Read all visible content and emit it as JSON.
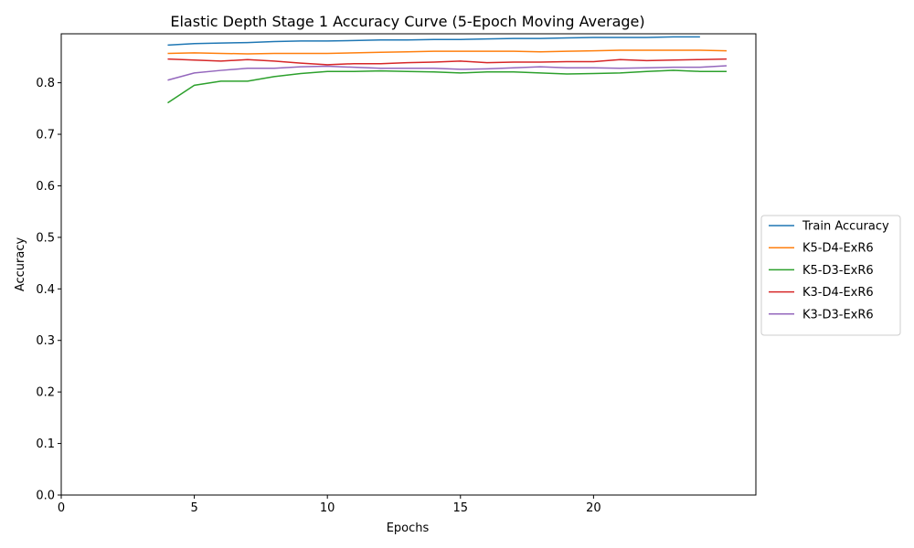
{
  "chart_data": {
    "type": "line",
    "title": "Elastic Depth Stage 1 Accuracy Curve (5-Epoch Moving Average)",
    "xlabel": "Epochs",
    "ylabel": "Accuracy",
    "xlim": [
      0,
      26.1
    ],
    "ylim": [
      0,
      0.895
    ],
    "xticks": [
      0,
      5,
      10,
      15,
      20
    ],
    "yticks": [
      0.0,
      0.1,
      0.2,
      0.3,
      0.4,
      0.5,
      0.6,
      0.7,
      0.8
    ],
    "grid": false,
    "legend_position": "right-outside",
    "series": [
      {
        "name": "Train Accuracy",
        "color": "#1f77b4",
        "x": [
          4,
          5,
          6,
          7,
          8,
          9,
          10,
          11,
          12,
          13,
          14,
          15,
          16,
          17,
          18,
          19,
          20,
          21,
          22,
          23,
          24
        ],
        "y": [
          0.873,
          0.876,
          0.877,
          0.878,
          0.88,
          0.881,
          0.881,
          0.882,
          0.883,
          0.883,
          0.884,
          0.884,
          0.885,
          0.886,
          0.886,
          0.887,
          0.888,
          0.888,
          0.888,
          0.889,
          0.889
        ]
      },
      {
        "name": "K5-D4-ExR6",
        "color": "#ff7f0e",
        "x": [
          4,
          5,
          6,
          7,
          8,
          9,
          10,
          11,
          12,
          13,
          14,
          15,
          16,
          17,
          18,
          19,
          20,
          21,
          22,
          23,
          24,
          25
        ],
        "y": [
          0.857,
          0.858,
          0.857,
          0.856,
          0.857,
          0.857,
          0.857,
          0.858,
          0.859,
          0.86,
          0.861,
          0.861,
          0.861,
          0.861,
          0.86,
          0.861,
          0.862,
          0.863,
          0.863,
          0.863,
          0.863,
          0.862
        ]
      },
      {
        "name": "K5-D3-ExR6",
        "color": "#2ca02c",
        "x": [
          4,
          5,
          6,
          7,
          8,
          9,
          10,
          11,
          12,
          13,
          14,
          15,
          16,
          17,
          18,
          19,
          20,
          21,
          22,
          23,
          24,
          25
        ],
        "y": [
          0.761,
          0.795,
          0.803,
          0.803,
          0.812,
          0.818,
          0.822,
          0.822,
          0.823,
          0.822,
          0.821,
          0.819,
          0.821,
          0.821,
          0.819,
          0.817,
          0.818,
          0.819,
          0.822,
          0.824,
          0.822,
          0.822
        ]
      },
      {
        "name": "K3-D4-ExR6",
        "color": "#d62728",
        "x": [
          4,
          5,
          6,
          7,
          8,
          9,
          10,
          11,
          12,
          13,
          14,
          15,
          16,
          17,
          18,
          19,
          20,
          21,
          22,
          23,
          24,
          25
        ],
        "y": [
          0.846,
          0.844,
          0.842,
          0.845,
          0.842,
          0.838,
          0.835,
          0.837,
          0.837,
          0.839,
          0.84,
          0.842,
          0.839,
          0.84,
          0.84,
          0.841,
          0.841,
          0.845,
          0.843,
          0.844,
          0.845,
          0.846
        ]
      },
      {
        "name": "K3-D3-ExR6",
        "color": "#9467bd",
        "x": [
          4,
          5,
          6,
          7,
          8,
          9,
          10,
          11,
          12,
          13,
          14,
          15,
          16,
          17,
          18,
          19,
          20,
          21,
          22,
          23,
          24,
          25
        ],
        "y": [
          0.805,
          0.819,
          0.824,
          0.828,
          0.828,
          0.831,
          0.832,
          0.83,
          0.828,
          0.828,
          0.828,
          0.826,
          0.827,
          0.829,
          0.831,
          0.829,
          0.829,
          0.828,
          0.829,
          0.83,
          0.83,
          0.833
        ]
      }
    ]
  }
}
